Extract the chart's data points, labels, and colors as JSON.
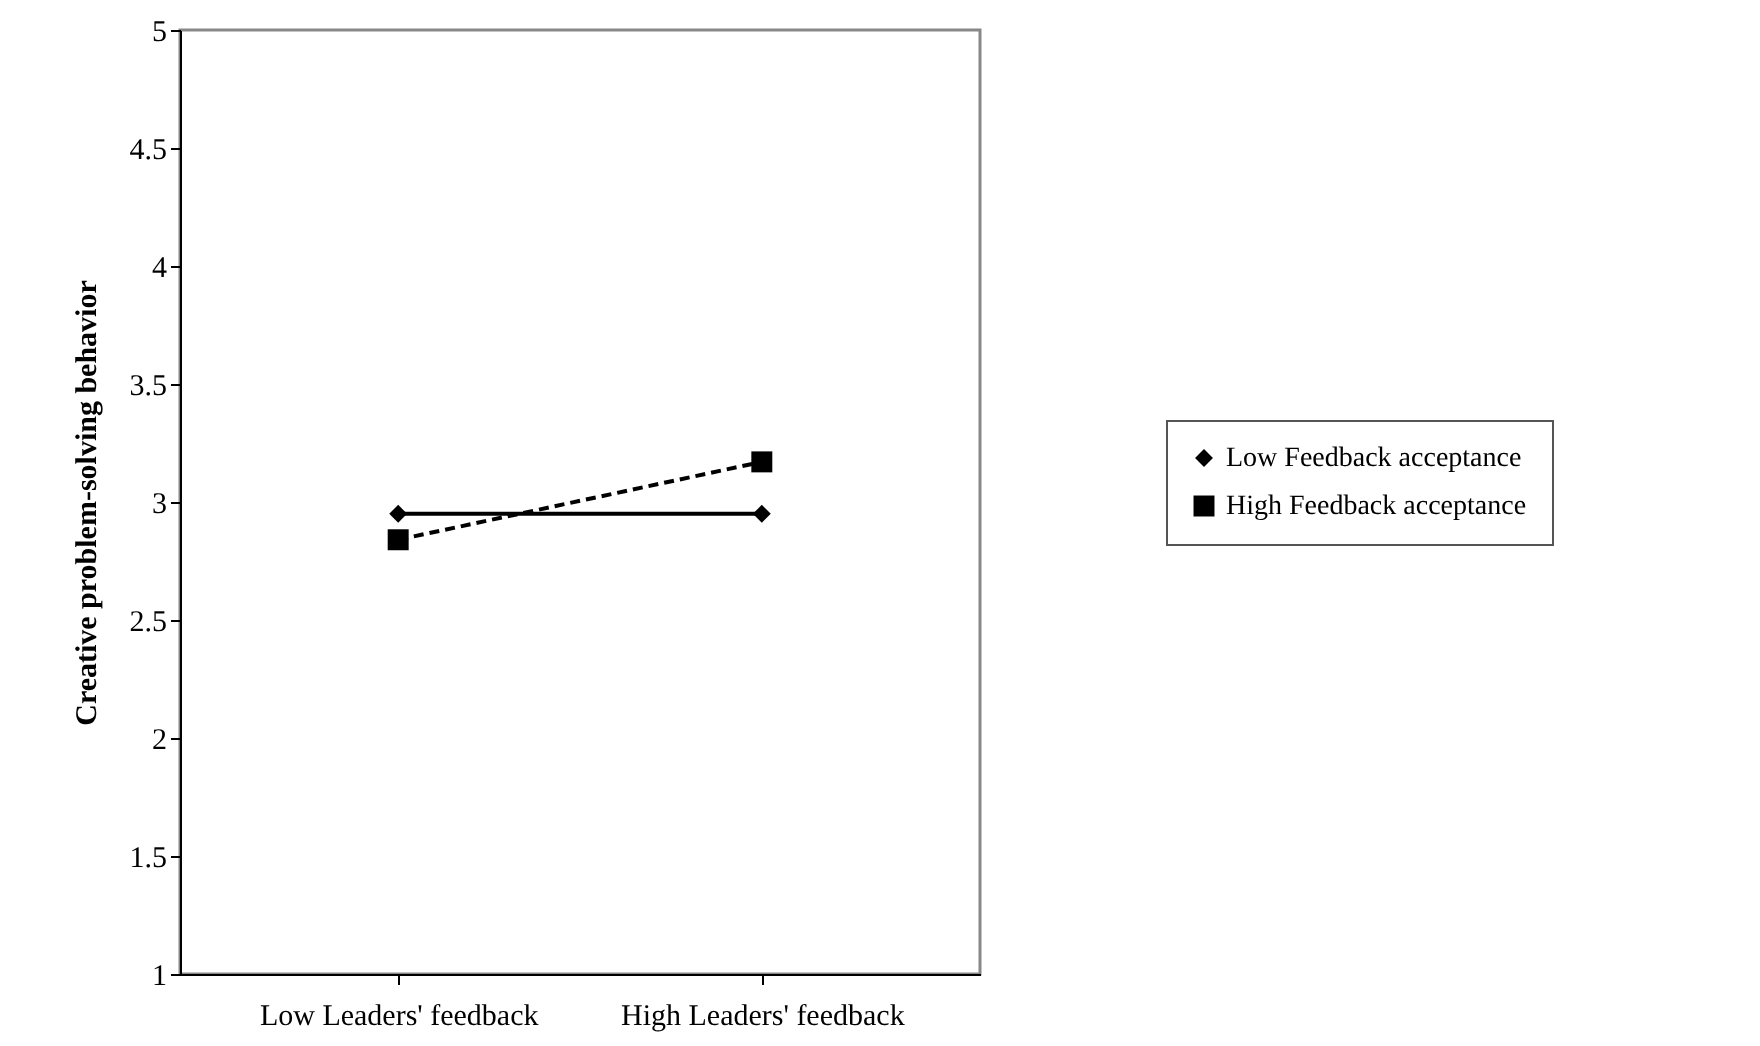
{
  "chart_data": {
    "type": "line",
    "ylabel": "Creative problem-solving behavior",
    "categories": [
      "Low Leaders' feedback",
      "High Leaders' feedback"
    ],
    "series": [
      {
        "name": "Low Feedback acceptance",
        "color": "#000000",
        "values": [
          2.95,
          2.95
        ],
        "marker": "diamond",
        "line_style": "solid"
      },
      {
        "name": "High Feedback acceptance",
        "color": "#000000",
        "values": [
          2.84,
          3.17
        ],
        "marker": "square",
        "line_style": "dashed"
      }
    ],
    "ylim": [
      1,
      5
    ],
    "yticks": [
      1,
      1.5,
      2,
      2.5,
      3,
      3.5,
      4,
      4.5,
      5
    ],
    "grid": false,
    "legend": "right"
  }
}
